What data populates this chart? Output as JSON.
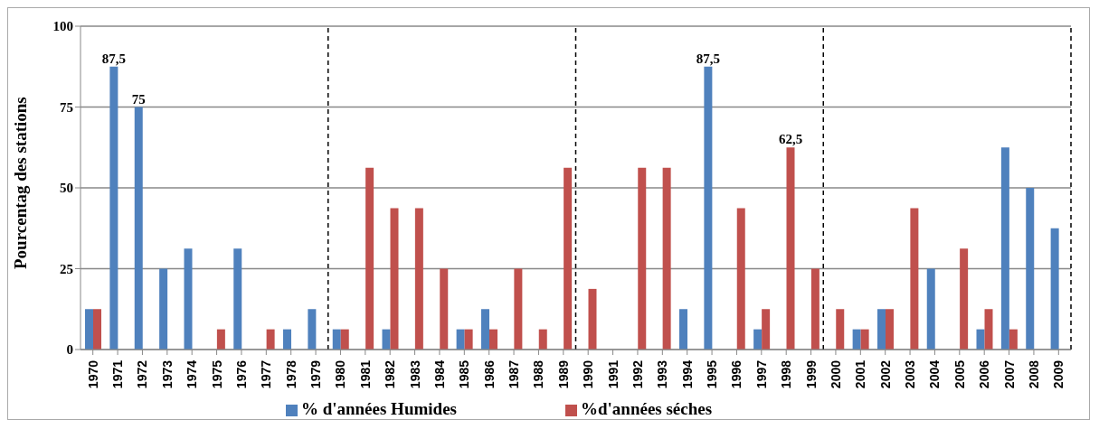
{
  "chart_data": {
    "type": "bar",
    "ylabel": "Pourcentag des stations",
    "x": [
      1970,
      1971,
      1972,
      1973,
      1974,
      1975,
      1976,
      1977,
      1978,
      1979,
      1980,
      1981,
      1982,
      1983,
      1984,
      1985,
      1986,
      1987,
      1988,
      1989,
      1990,
      1991,
      1992,
      1993,
      1994,
      1995,
      1996,
      1997,
      1998,
      1999,
      2000,
      2001,
      2002,
      2003,
      2004,
      2005,
      2006,
      2007,
      2008,
      2009
    ],
    "xlim": [
      1969.5,
      2009.5
    ],
    "xticks": [
      1970,
      1971,
      1972,
      1973,
      1974,
      1975,
      1976,
      1977,
      1978,
      1979,
      1980,
      1981,
      1982,
      1983,
      1984,
      1985,
      1986,
      1987,
      1988,
      1989,
      1990,
      1991,
      1992,
      1993,
      1994,
      1995,
      1996,
      1997,
      1998,
      1999,
      2000,
      2001,
      2002,
      2003,
      2004,
      2005,
      2006,
      2007,
      2008,
      2009
    ],
    "series": [
      {
        "name": "% d'années Humides",
        "color": "#4f81bd",
        "values": [
          12.5,
          87.5,
          75,
          25,
          31.25,
          0,
          31.25,
          0,
          6.25,
          12.5,
          6.25,
          0,
          6.25,
          0,
          0,
          6.25,
          12.5,
          0,
          0,
          0,
          0,
          0,
          0,
          0,
          12.5,
          87.5,
          0,
          6.25,
          0,
          0,
          0,
          6.25,
          12.5,
          0,
          25,
          0,
          6.25,
          62.5,
          50,
          37.5
        ],
        "value_labels": [
          null,
          "87,5",
          "75",
          null,
          null,
          null,
          null,
          null,
          null,
          null,
          null,
          null,
          null,
          null,
          null,
          null,
          null,
          null,
          null,
          null,
          null,
          null,
          null,
          null,
          null,
          "87,5",
          null,
          null,
          null,
          null,
          null,
          null,
          null,
          null,
          null,
          null,
          null,
          null,
          null,
          null
        ]
      },
      {
        "name": "%d'années séches",
        "color": "#c0504d",
        "values": [
          12.5,
          0,
          0,
          0,
          0,
          6.25,
          0,
          6.25,
          0,
          0,
          6.25,
          56.25,
          43.75,
          43.75,
          25,
          6.25,
          6.25,
          25,
          6.25,
          56.25,
          18.75,
          0,
          56.25,
          56.25,
          0,
          0,
          43.75,
          12.5,
          62.5,
          25,
          12.5,
          6.25,
          12.5,
          43.75,
          0,
          31.25,
          12.5,
          6.25,
          0,
          0
        ],
        "value_labels": [
          null,
          null,
          null,
          null,
          null,
          null,
          null,
          null,
          null,
          null,
          null,
          null,
          null,
          null,
          null,
          null,
          null,
          null,
          null,
          null,
          null,
          null,
          null,
          null,
          null,
          null,
          null,
          null,
          "62,5",
          null,
          null,
          null,
          null,
          null,
          null,
          null,
          null,
          null,
          null,
          null
        ]
      }
    ],
    "ylim": [
      0,
      100
    ],
    "yticks": [
      0,
      25,
      50,
      75,
      100
    ],
    "grid": "y",
    "legend": "bottom",
    "ref_lines": [
      {
        "axis": "x",
        "value": 1979.5,
        "line_style": "dashed",
        "color": "#000000"
      },
      {
        "axis": "x",
        "value": 1989.5,
        "line_style": "dashed",
        "color": "#000000"
      },
      {
        "axis": "x",
        "value": 1999.5,
        "line_style": "dashed",
        "color": "#000000"
      },
      {
        "axis": "x",
        "value": 2009.5,
        "line_style": "dashed",
        "color": "#000000"
      }
    ]
  }
}
